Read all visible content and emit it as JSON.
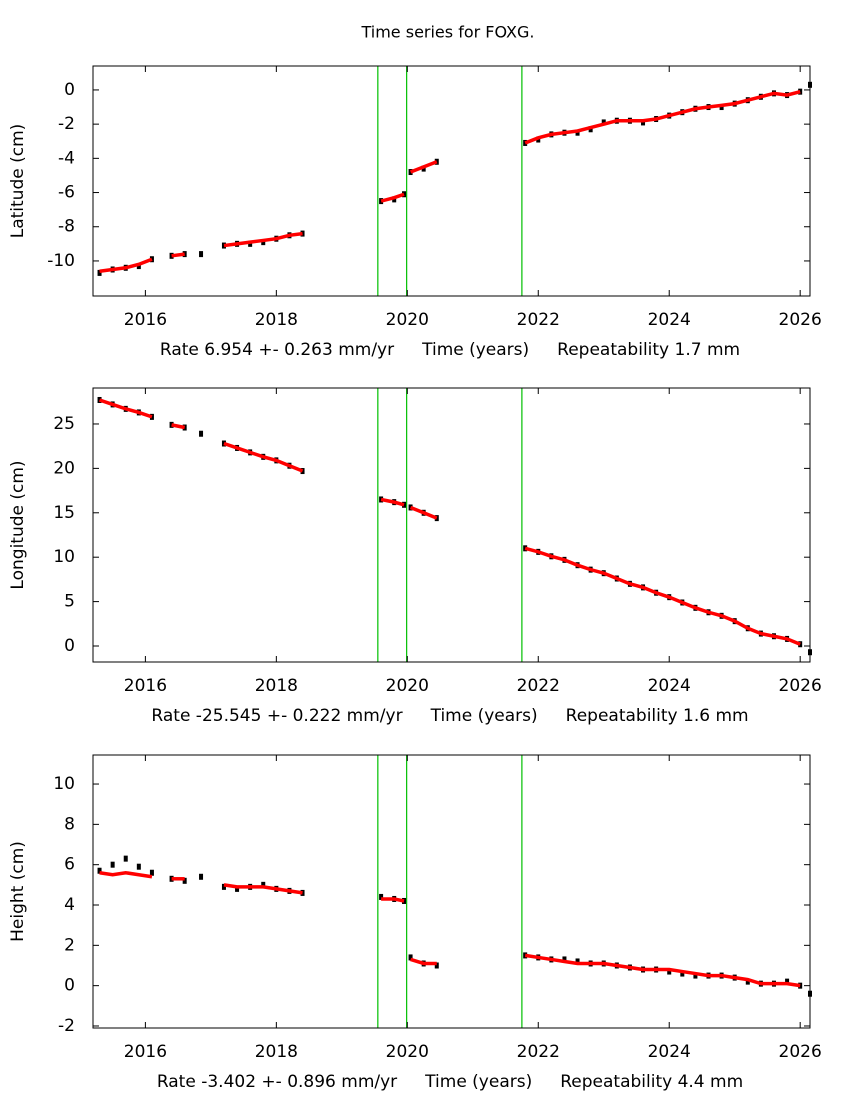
{
  "title": "Time series for FOXG.",
  "chart_data": [
    {
      "type": "scatter",
      "ylabel": "Latitude (cm)",
      "rate": "Rate 6.954 +- 0.263 mm/yr",
      "xlabel": "Time (years)",
      "repeatability": "Repeatability 1.7 mm",
      "x": [
        2015.3,
        2015.5,
        2015.7,
        2015.9,
        2016.1,
        2016.25,
        2016.4,
        2016.6,
        2016.75,
        2016.85,
        2017.0,
        2017.2,
        2017.4,
        2017.6,
        2017.8,
        2018.0,
        2018.2,
        2018.4,
        2019.0,
        2019.6,
        2019.8,
        2019.95,
        2019.99,
        2020.05,
        2020.25,
        2020.45,
        2021.0,
        2021.8,
        2022.0,
        2022.2,
        2022.4,
        2022.6,
        2022.8,
        2023.0,
        2023.2,
        2023.4,
        2023.6,
        2023.8,
        2024.0,
        2024.2,
        2024.4,
        2024.6,
        2024.8,
        2025.0,
        2025.2,
        2025.4,
        2025.6,
        2025.8,
        2026.0,
        2026.08,
        2026.15
      ],
      "series": [
        {
          "color": "#000000",
          "values": [
            -10.7,
            -10.5,
            -10.4,
            -10.3,
            -9.9,
            null,
            -9.7,
            -9.6,
            null,
            -9.6,
            null,
            -9.1,
            -9.0,
            -9.0,
            -8.9,
            -8.7,
            -8.5,
            -8.4,
            null,
            -6.5,
            -6.4,
            -6.1,
            null,
            -4.8,
            -4.6,
            -4.2,
            null,
            -3.1,
            -2.9,
            -2.6,
            -2.5,
            -2.5,
            -2.3,
            -1.9,
            -1.8,
            -1.8,
            -1.9,
            -1.7,
            -1.5,
            -1.3,
            -1.1,
            -1.0,
            -1.0,
            -0.8,
            -0.6,
            -0.4,
            -0.2,
            -0.3,
            -0.1,
            null,
            0.3
          ]
        },
        {
          "color": "#ff0000",
          "line": true,
          "values": [
            -10.6,
            -10.5,
            -10.4,
            -10.2,
            -9.9,
            null,
            -9.7,
            -9.6,
            null,
            -9.5,
            null,
            -9.1,
            -9.0,
            -8.9,
            -8.8,
            -8.7,
            -8.5,
            -8.4,
            null,
            -6.5,
            -6.3,
            -6.1,
            null,
            -4.8,
            -4.5,
            -4.2,
            null,
            -3.1,
            -2.8,
            -2.6,
            -2.5,
            -2.4,
            -2.2,
            -2.0,
            -1.8,
            -1.8,
            -1.8,
            -1.7,
            -1.5,
            -1.3,
            -1.1,
            -1.0,
            -0.9,
            -0.8,
            -0.6,
            -0.4,
            -0.2,
            -0.3,
            -0.1,
            null,
            null
          ]
        }
      ],
      "event_lines": [
        2019.55,
        2019.99,
        2021.75
      ],
      "event_color": "#00c000",
      "xlim": [
        2015.2,
        2026.15
      ],
      "xticks": [
        2016,
        2018,
        2020,
        2022,
        2024,
        2026
      ],
      "ylim": [
        -12.05,
        1.4
      ],
      "yticks": [
        -10,
        -8,
        -6,
        -4,
        -2,
        0
      ]
    },
    {
      "type": "scatter",
      "ylabel": "Longitude (cm)",
      "rate": "Rate -25.545 +- 0.222 mm/yr",
      "xlabel": "Time (years)",
      "repeatability": "Repeatability 1.6 mm",
      "x": [
        2015.3,
        2015.5,
        2015.7,
        2015.9,
        2016.1,
        2016.25,
        2016.4,
        2016.6,
        2016.75,
        2016.85,
        2017.0,
        2017.2,
        2017.4,
        2017.6,
        2017.8,
        2018.0,
        2018.2,
        2018.4,
        2019.0,
        2019.6,
        2019.8,
        2019.95,
        2019.99,
        2020.05,
        2020.25,
        2020.45,
        2021.0,
        2021.8,
        2022.0,
        2022.2,
        2022.4,
        2022.6,
        2022.8,
        2023.0,
        2023.2,
        2023.4,
        2023.6,
        2023.8,
        2024.0,
        2024.2,
        2024.4,
        2024.6,
        2024.8,
        2025.0,
        2025.2,
        2025.4,
        2025.6,
        2025.8,
        2026.0,
        2026.08,
        2026.15
      ],
      "series": [
        {
          "color": "#000000",
          "values": [
            27.7,
            27.2,
            26.7,
            26.3,
            25.8,
            null,
            24.9,
            24.6,
            null,
            23.9,
            null,
            22.8,
            22.3,
            21.8,
            21.3,
            20.9,
            20.3,
            19.7,
            null,
            16.5,
            16.2,
            15.9,
            null,
            15.6,
            15.0,
            14.4,
            null,
            11.0,
            10.6,
            10.1,
            9.7,
            9.1,
            8.6,
            8.2,
            7.6,
            7.0,
            6.6,
            6.0,
            5.5,
            4.9,
            4.3,
            3.8,
            3.4,
            2.8,
            2.0,
            1.4,
            1.1,
            0.8,
            0.2,
            null,
            -0.7
          ]
        },
        {
          "color": "#ff0000",
          "line": true,
          "values": [
            27.7,
            27.2,
            26.7,
            26.3,
            25.8,
            null,
            24.9,
            24.6,
            null,
            23.9,
            null,
            22.8,
            22.3,
            21.8,
            21.3,
            20.9,
            20.3,
            19.7,
            null,
            16.5,
            16.2,
            15.9,
            null,
            15.6,
            15.0,
            14.4,
            null,
            11.0,
            10.6,
            10.1,
            9.7,
            9.1,
            8.6,
            8.2,
            7.6,
            7.0,
            6.6,
            6.0,
            5.5,
            4.9,
            4.3,
            3.8,
            3.4,
            2.8,
            2.0,
            1.4,
            1.1,
            0.8,
            0.2,
            null,
            null
          ]
        }
      ],
      "event_lines": [
        2019.55,
        2019.99,
        2021.75
      ],
      "event_color": "#00c000",
      "xlim": [
        2015.2,
        2026.15
      ],
      "xticks": [
        2016,
        2018,
        2020,
        2022,
        2024,
        2026
      ],
      "ylim": [
        -1.8,
        29.05
      ],
      "yticks": [
        0,
        5,
        10,
        15,
        20,
        25
      ]
    },
    {
      "type": "scatter",
      "ylabel": "Height (cm)",
      "rate": "Rate -3.402 +- 0.896 mm/yr",
      "xlabel": "Time (years)",
      "repeatability": "Repeatability 4.4 mm",
      "x": [
        2015.3,
        2015.5,
        2015.7,
        2015.9,
        2016.1,
        2016.25,
        2016.4,
        2016.6,
        2016.75,
        2016.85,
        2017.0,
        2017.2,
        2017.4,
        2017.6,
        2017.8,
        2018.0,
        2018.2,
        2018.4,
        2019.0,
        2019.6,
        2019.8,
        2019.95,
        2019.99,
        2020.05,
        2020.25,
        2020.45,
        2021.0,
        2021.8,
        2022.0,
        2022.2,
        2022.4,
        2022.6,
        2022.8,
        2023.0,
        2023.2,
        2023.4,
        2023.6,
        2023.8,
        2024.0,
        2024.2,
        2024.4,
        2024.6,
        2024.8,
        2025.0,
        2025.2,
        2025.4,
        2025.6,
        2025.8,
        2026.0,
        2026.08,
        2026.15
      ],
      "series": [
        {
          "color": "#000000",
          "values": [
            5.7,
            6.0,
            6.3,
            5.9,
            5.6,
            null,
            5.3,
            5.2,
            null,
            5.4,
            null,
            4.9,
            4.8,
            4.9,
            5.0,
            4.8,
            4.7,
            4.6,
            null,
            4.4,
            4.3,
            4.2,
            null,
            1.4,
            1.1,
            1.0,
            null,
            1.5,
            1.4,
            1.3,
            1.3,
            1.2,
            1.1,
            1.1,
            1.0,
            0.9,
            0.8,
            0.8,
            0.7,
            0.6,
            0.5,
            0.5,
            0.5,
            0.4,
            0.2,
            0.1,
            0.1,
            0.2,
            0.0,
            null,
            -0.4
          ]
        },
        {
          "color": "#ff0000",
          "line": true,
          "values": [
            5.6,
            5.5,
            5.6,
            5.5,
            5.4,
            null,
            5.3,
            5.3,
            null,
            5.2,
            null,
            5.0,
            4.9,
            4.9,
            4.9,
            4.8,
            4.7,
            4.6,
            null,
            4.3,
            4.3,
            4.2,
            null,
            1.3,
            1.1,
            1.1,
            null,
            1.5,
            1.4,
            1.3,
            1.2,
            1.1,
            1.1,
            1.1,
            1.0,
            0.9,
            0.8,
            0.8,
            0.8,
            0.7,
            0.6,
            0.5,
            0.5,
            0.4,
            0.3,
            0.1,
            0.1,
            0.1,
            0.0,
            null,
            null
          ]
        }
      ],
      "event_lines": [
        2019.55,
        2019.99,
        2021.75
      ],
      "event_color": "#00c000",
      "xlim": [
        2015.2,
        2026.15
      ],
      "xticks": [
        2016,
        2018,
        2020,
        2022,
        2024,
        2026
      ],
      "ylim": [
        -2.1,
        11.44
      ],
      "yticks": [
        -2,
        0,
        2,
        4,
        6,
        8,
        10
      ]
    }
  ]
}
